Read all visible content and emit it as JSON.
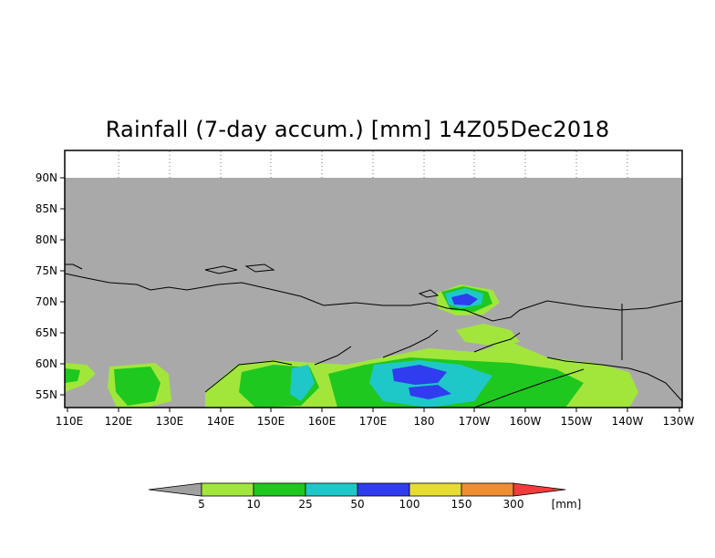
{
  "title": "Rainfall (7-day accum.) [mm] 14Z05Dec2018",
  "map": {
    "lat_labels": [
      "90N",
      "85N",
      "80N",
      "75N",
      "70N",
      "65N",
      "60N",
      "55N"
    ],
    "lon_labels": [
      "110E",
      "120E",
      "130E",
      "140E",
      "150E",
      "160E",
      "170E",
      "180",
      "170W",
      "160W",
      "150W",
      "140W",
      "130W"
    ],
    "background_color": "#a9a9a9",
    "coastline_color": "#000000"
  },
  "legend": {
    "unit": "[mm]",
    "thresholds": [
      "5",
      "10",
      "25",
      "50",
      "100",
      "150",
      "300"
    ],
    "colors": [
      "#a0a0a0",
      "#a2e63c",
      "#1ec81e",
      "#1ec8c8",
      "#2f3cf0",
      "#e6dc32",
      "#f08c32",
      "#f03c3c"
    ]
  }
}
